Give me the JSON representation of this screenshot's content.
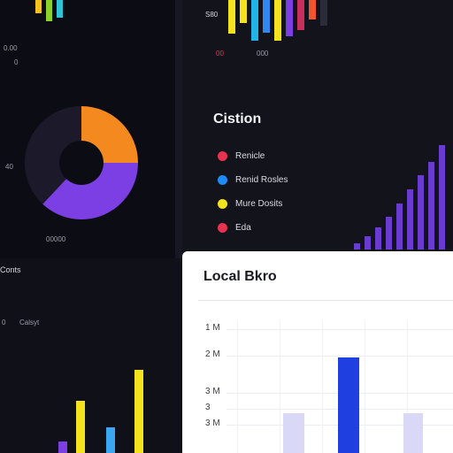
{
  "left_top": {
    "corner_label_a": "0.00",
    "corner_label_b": "0",
    "axis_label": "40",
    "donut_caption": "00000",
    "donut": [
      {
        "name": "orange",
        "value": 0.25,
        "color": "#f4891f"
      },
      {
        "name": "purple",
        "value": 0.37,
        "color": "#7b3fe4"
      },
      {
        "name": "dark",
        "value": 0.38,
        "color": "#1c1a2a"
      }
    ],
    "top_bars": [
      {
        "color": "#f4c21f",
        "value": 0.55
      },
      {
        "color": "#8ad22a",
        "value": 0.85
      },
      {
        "color": "#2ec4d6",
        "value": 0.7
      }
    ]
  },
  "right_top": {
    "corner_label": "S80",
    "sub_label_a": "00",
    "sub_label_b": "000",
    "top_bars": [
      {
        "color": "#f4e21f",
        "value": 0.8
      },
      {
        "color": "#f4e21f",
        "value": 0.55
      },
      {
        "color": "#22b4e6",
        "value": 0.95
      },
      {
        "color": "#2e88f0",
        "value": 0.78
      },
      {
        "color": "#f4e21f",
        "value": 0.95
      },
      {
        "color": "#7b3fe4",
        "value": 0.85
      },
      {
        "color": "#c72f5c",
        "value": 0.7
      },
      {
        "color": "#f0552e",
        "value": 0.45
      },
      {
        "color": "#2a2c3a",
        "value": 0.6
      }
    ],
    "legend": {
      "title": "Cistion",
      "items": [
        {
          "label": "Renicle",
          "color": "#e8324f"
        },
        {
          "label": "Renid Rosles",
          "color": "#1f8bf5"
        },
        {
          "label": "Mure Dosits",
          "color": "#f1e21c"
        },
        {
          "label": "Eda",
          "color": "#e8324f"
        }
      ]
    },
    "side_bars": [
      0.06,
      0.12,
      0.2,
      0.3,
      0.42,
      0.55,
      0.68,
      0.8,
      0.95
    ]
  },
  "left_bottom": {
    "section_label": "Conts",
    "side_label_a": "0",
    "side_label_b": "Calsyt",
    "bars": [
      {
        "color": "#7b3fe4",
        "value": 0.1
      },
      {
        "color": "#f4e21f",
        "value": 0.45
      },
      {
        "color": "#3aa7f0",
        "value": 0.22
      },
      {
        "color": "#f4e21f",
        "value": 0.72
      }
    ]
  },
  "card": {
    "title": "Local Bkro",
    "y_labels": [
      "1 M",
      "2 M",
      "3 M",
      "3",
      "3 M"
    ],
    "bars": [
      {
        "color": "#d9d8f6",
        "value": 0.3
      },
      {
        "color": "#1f3fe0",
        "value": 0.72
      },
      {
        "color": "#d9d8f6",
        "value": 0.3
      }
    ]
  }
}
